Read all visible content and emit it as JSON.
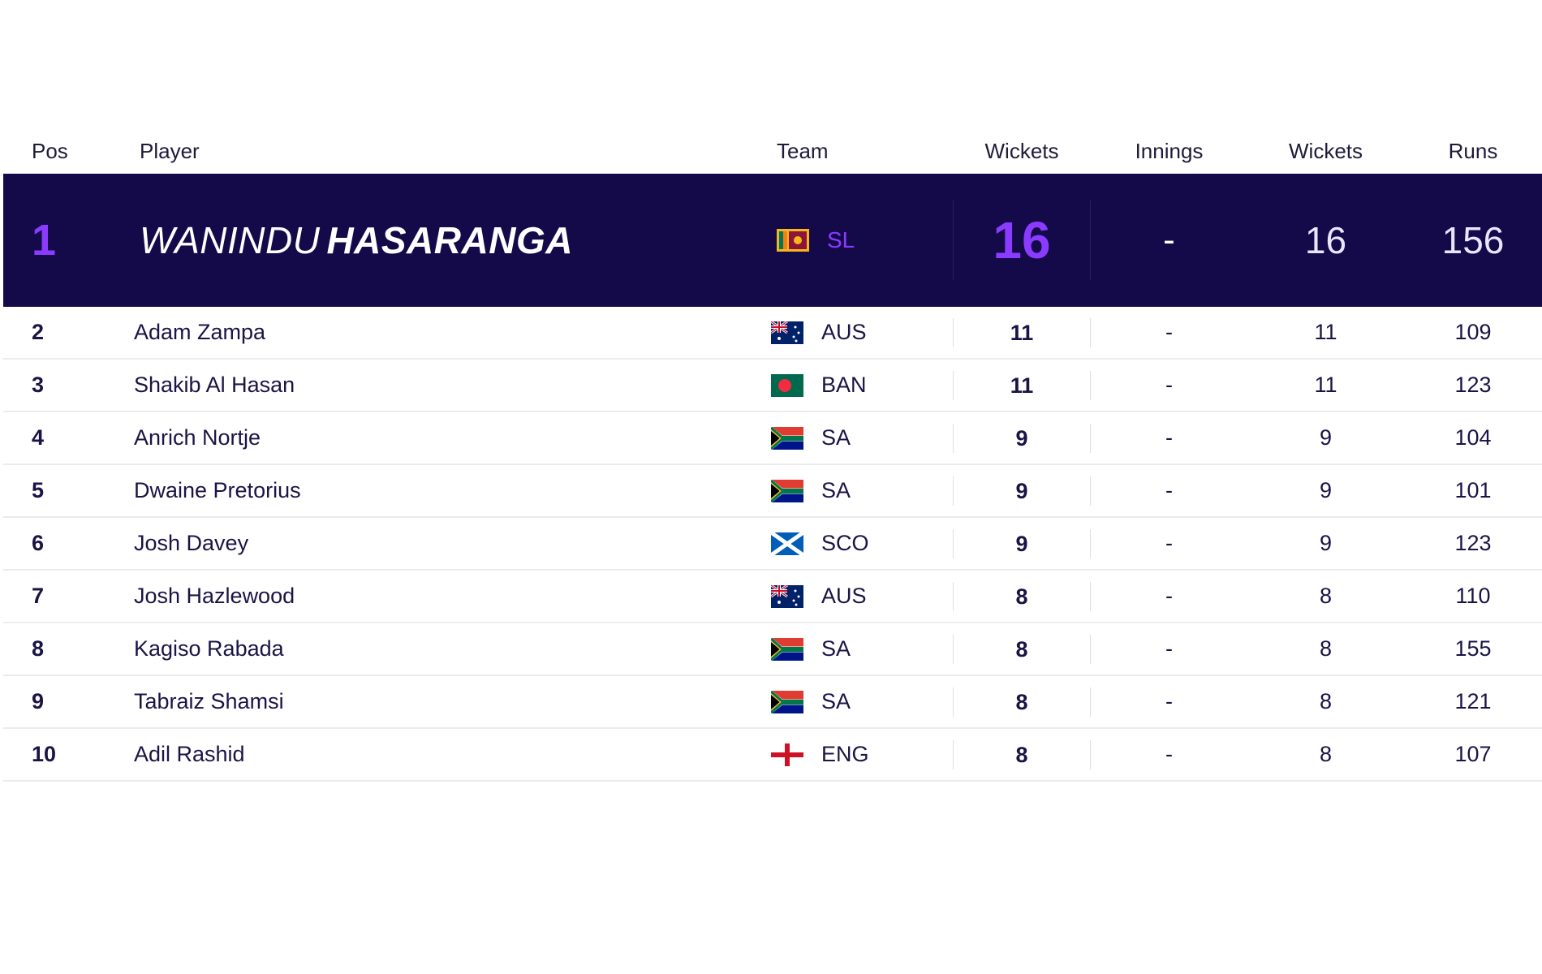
{
  "headers": {
    "pos": "Pos",
    "player": "Player",
    "team": "Team",
    "wickets": "Wickets",
    "innings": "Innings",
    "wickets2": "Wickets",
    "runs": "Runs"
  },
  "leader": {
    "pos": "1",
    "first_name": "WANINDU",
    "last_name": "HASARANGA",
    "flag": "sri-lanka-flag-icon",
    "team": "SL",
    "wickets": "16",
    "innings": "-",
    "wickets2": "16",
    "runs": "156"
  },
  "rows": [
    {
      "pos": "2",
      "player": "Adam Zampa",
      "flag": "australia-flag-icon",
      "team": "AUS",
      "wickets": "11",
      "innings": "-",
      "wickets2": "11",
      "runs": "109"
    },
    {
      "pos": "3",
      "player": "Shakib Al Hasan",
      "flag": "bangladesh-flag-icon",
      "team": "BAN",
      "wickets": "11",
      "innings": "-",
      "wickets2": "11",
      "runs": "123"
    },
    {
      "pos": "4",
      "player": "Anrich Nortje",
      "flag": "south-africa-flag-icon",
      "team": "SA",
      "wickets": "9",
      "innings": "-",
      "wickets2": "9",
      "runs": "104"
    },
    {
      "pos": "5",
      "player": "Dwaine Pretorius",
      "flag": "south-africa-flag-icon",
      "team": "SA",
      "wickets": "9",
      "innings": "-",
      "wickets2": "9",
      "runs": "101"
    },
    {
      "pos": "6",
      "player": "Josh Davey",
      "flag": "scotland-flag-icon",
      "team": "SCO",
      "wickets": "9",
      "innings": "-",
      "wickets2": "9",
      "runs": "123"
    },
    {
      "pos": "7",
      "player": "Josh Hazlewood",
      "flag": "australia-flag-icon",
      "team": "AUS",
      "wickets": "8",
      "innings": "-",
      "wickets2": "8",
      "runs": "110"
    },
    {
      "pos": "8",
      "player": "Kagiso Rabada",
      "flag": "south-africa-flag-icon",
      "team": "SA",
      "wickets": "8",
      "innings": "-",
      "wickets2": "8",
      "runs": "155"
    },
    {
      "pos": "9",
      "player": "Tabraiz Shamsi",
      "flag": "south-africa-flag-icon",
      "team": "SA",
      "wickets": "8",
      "innings": "-",
      "wickets2": "8",
      "runs": "121"
    },
    {
      "pos": "10",
      "player": "Adil Rashid",
      "flag": "england-flag-icon",
      "team": "ENG",
      "wickets": "8",
      "innings": "-",
      "wickets2": "8",
      "runs": "107"
    }
  ],
  "colors": {
    "hero_bg": "#140a4a",
    "accent": "#8a3bff",
    "text": "#1a1446",
    "row_divider": "#ececf0"
  }
}
